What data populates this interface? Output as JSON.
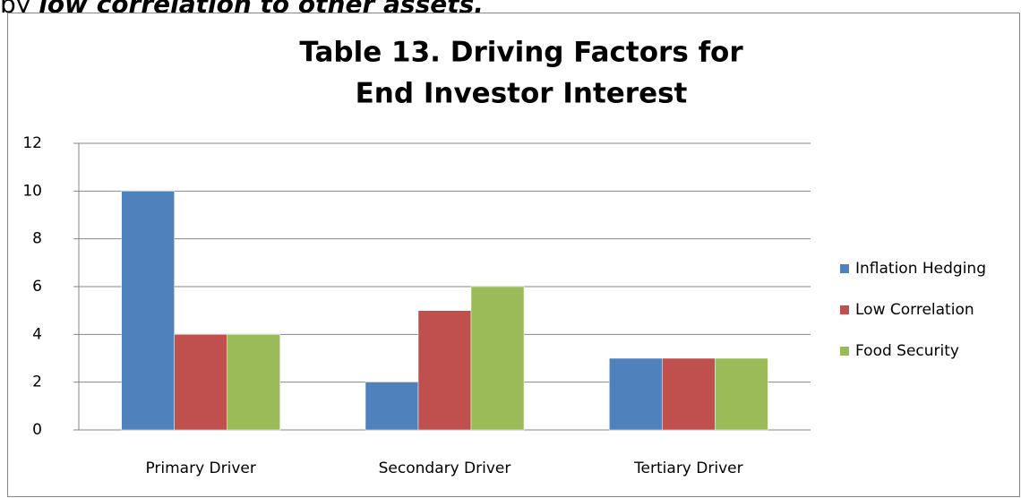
{
  "context_text": {
    "prefix": "by ",
    "emphasis": "low correlation to other assets."
  },
  "chart_data": {
    "type": "bar",
    "title_lines": [
      "Table 13. Driving Factors for",
      "End Investor Interest"
    ],
    "categories": [
      "Primary Driver",
      "Secondary Driver",
      "Tertiary Driver"
    ],
    "series": [
      {
        "name": "Inflation Hedging",
        "color": "#4f81bd",
        "values": [
          10,
          2,
          3
        ]
      },
      {
        "name": "Low Correlation",
        "color": "#c0504d",
        "values": [
          4,
          5,
          3
        ]
      },
      {
        "name": "Food Security",
        "color": "#9bbb59",
        "values": [
          4,
          6,
          3
        ]
      }
    ],
    "ylim": [
      0,
      12
    ],
    "yticks": [
      0,
      2,
      4,
      6,
      8,
      10,
      12
    ],
    "grid": true,
    "legend": "right"
  }
}
